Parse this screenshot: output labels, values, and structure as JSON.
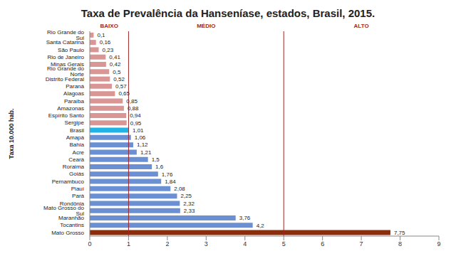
{
  "chart_data": {
    "type": "bar",
    "title": "Taxa de Prevalência da Hanseníase, estados, Brasil, 2015.",
    "orientation": "horizontal",
    "y_label": "Taxa 10.000 hab.",
    "categories": [
      "Rio Grande do Sul",
      "Santa Catarina",
      "São Paulo",
      "Rio de Janeiro",
      "Minas Gerais",
      "Rio Grande do Norte",
      "Distrito Federal",
      "Paraná",
      "Alagoas",
      "Paraíba",
      "Amazonas",
      "Espírito Santo",
      "Sergipe",
      "Brasil",
      "Amapá",
      "Bahia",
      "Acre",
      "Ceará",
      "Roraima",
      "Goiás",
      "Pernambuco",
      "Piauí",
      "Pará",
      "Rondônia",
      "Mato Grosso do Sul",
      "Maranhão",
      "Tocantins",
      "Mato Grosso"
    ],
    "values": [
      0.1,
      0.16,
      0.23,
      0.41,
      0.42,
      0.5,
      0.52,
      0.57,
      0.65,
      0.85,
      0.88,
      0.94,
      0.95,
      1.01,
      1.06,
      1.12,
      1.21,
      1.5,
      1.6,
      1.76,
      1.84,
      2.08,
      2.25,
      2.32,
      2.33,
      3.76,
      4.2,
      7.75
    ],
    "value_labels": [
      "0,1",
      "0,16",
      "0,23",
      "0,41",
      "0,42",
      "0,5",
      "0,52",
      "0,57",
      "0,65",
      "0,85",
      "0,88",
      "0,94",
      "0,95",
      "1,01",
      "1,06",
      "1,12",
      "1,21",
      "1,5",
      "1,6",
      "1,76",
      "1,84",
      "2,08",
      "2,25",
      "2,32",
      "2,33",
      "3,76",
      "4,2",
      "7,75"
    ],
    "data_labels": true,
    "colors": [
      "#d99694",
      "#d99694",
      "#d99694",
      "#d99694",
      "#d99694",
      "#d99694",
      "#d99694",
      "#d99694",
      "#d99694",
      "#d99694",
      "#d99694",
      "#d99694",
      "#d99694",
      "#1fb4e8",
      "#6a8fd2",
      "#6a8fd2",
      "#6a8fd2",
      "#6a8fd2",
      "#6a8fd2",
      "#6a8fd2",
      "#6a8fd2",
      "#6a8fd2",
      "#6a8fd2",
      "#6a8fd2",
      "#6a8fd2",
      "#6a8fd2",
      "#6a8fd2",
      "#8b2c0b"
    ],
    "xlim": [
      0,
      9
    ],
    "xticks": [
      0,
      1,
      2,
      3,
      4,
      5,
      6,
      7,
      8,
      9
    ],
    "zones": [
      {
        "label": "BAIXO",
        "from": 0,
        "to": 1
      },
      {
        "label": "MÉDIO",
        "from": 1,
        "to": 5
      },
      {
        "label": "ALTO",
        "from": 5,
        "to": 9
      }
    ],
    "grid": false
  }
}
